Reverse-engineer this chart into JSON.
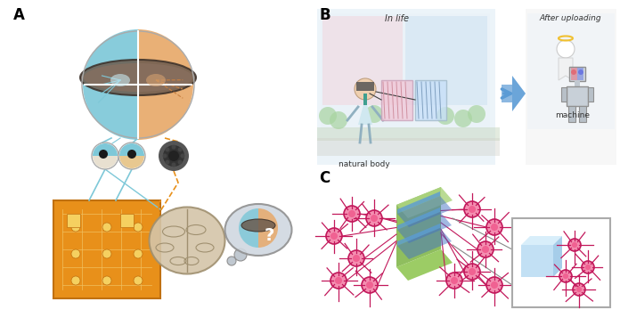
{
  "fig_width": 6.96,
  "fig_height": 3.66,
  "dpi": 100,
  "background_color": "#ffffff",
  "panel_A_label": "A",
  "panel_B_label": "B",
  "panel_C_label": "C",
  "label_fontsize": 12,
  "label_fontweight": "bold",
  "text_in_life": "In life",
  "text_after_uploading": "After uploading",
  "text_natural_body": "natural body",
  "text_machine": "machine",
  "color_blue_face": "#7ec8d8",
  "color_orange_face": "#e8a96a",
  "color_dark_gray": "#555555",
  "color_orange_board": "#f5a623",
  "color_brain": "#d4c5a9",
  "color_circuit": "#e8901a",
  "color_blue_hemisphere": "#a8d4e8",
  "color_pink_hemisphere": "#e8a8c0",
  "color_green_layer": "#8bc34a",
  "color_blue_layer": "#5b9bd5",
  "color_neuron_body": "#f48fb1",
  "color_neuron_outline": "#c2185b",
  "color_thought_bubble": "#b0b8c0",
  "color_arrow": "#6baed6",
  "color_pink_tissue": "#e8a8c0",
  "color_blue_tissue": "#a8d4e8",
  "color_bg_in_life": "#daeaf5",
  "color_bg_after": "#f0f0f0",
  "color_green_bush": "#a8d4a0",
  "color_building": "#e8e0d0",
  "color_road": "#d0d0d0"
}
